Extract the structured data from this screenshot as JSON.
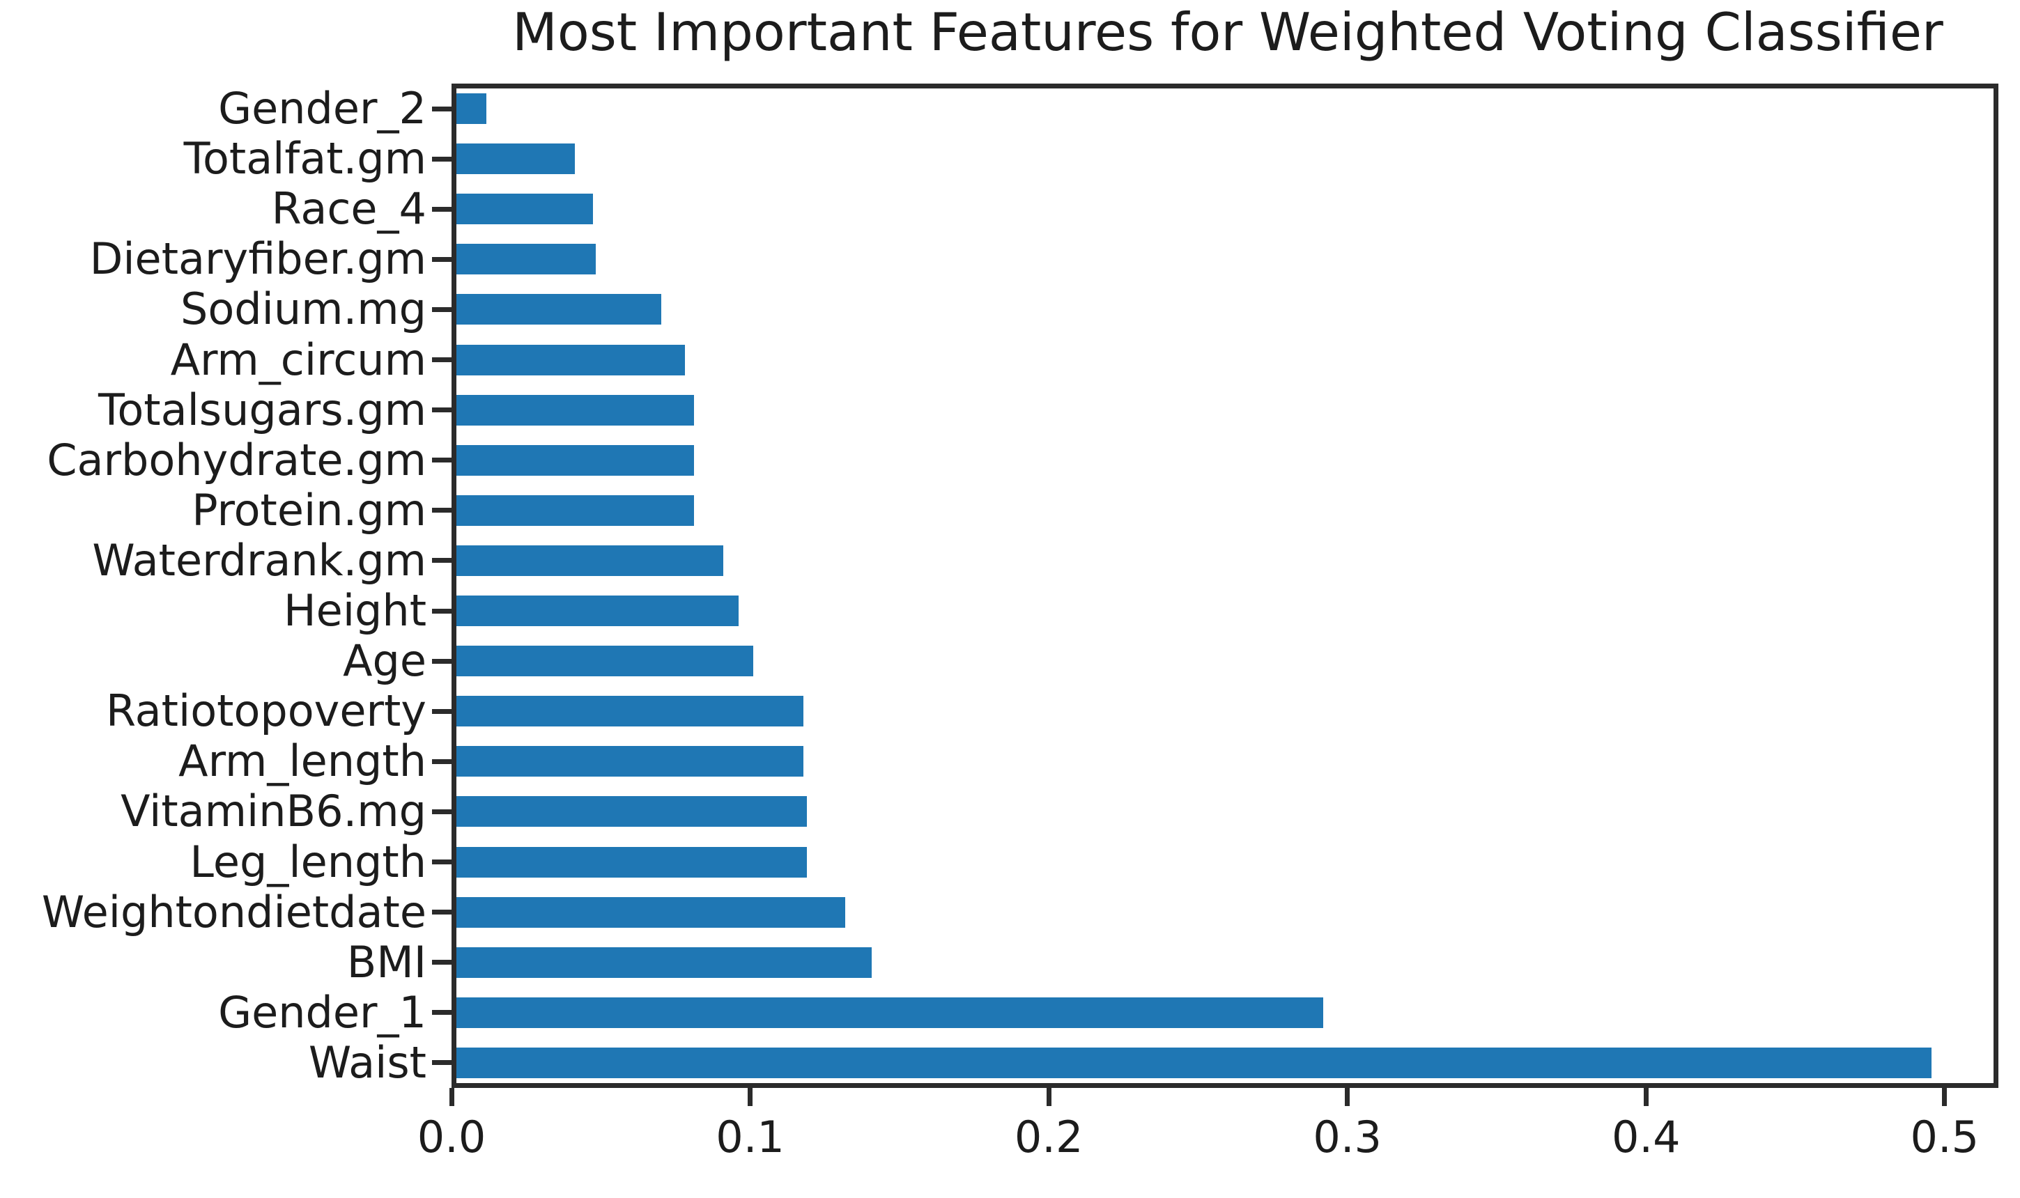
{
  "title": "Most Important Features for Weighted Voting Classifier",
  "colors": {
    "bar": "#1f77b4",
    "spine": "#2b2b2b",
    "text": "#1c1c1c",
    "background": "#ffffff"
  },
  "chart_data": {
    "type": "bar",
    "orientation": "horizontal",
    "order": "top-to-bottom",
    "title": "Most Important Features for Weighted Voting Classifier",
    "xlabel": "",
    "ylabel": "",
    "grid": false,
    "legend": false,
    "categories": [
      "Gender_2",
      "Totalfat.gm",
      "Race_4",
      "Dietaryfiber.gm",
      "Sodium.mg",
      "Arm_circum",
      "Totalsugars.gm",
      "Carbohydrate.gm",
      "Protein.gm",
      "Waterdrank.gm",
      "Height",
      "Age",
      "Ratiotopoverty",
      "Arm_length",
      "VitaminB6.mg",
      "Leg_length",
      "Weightondietdate",
      "BMI",
      "Gender_1",
      "Waist"
    ],
    "values": [
      0.01,
      0.04,
      0.046,
      0.047,
      0.069,
      0.077,
      0.08,
      0.08,
      0.08,
      0.09,
      0.095,
      0.1,
      0.117,
      0.117,
      0.118,
      0.118,
      0.131,
      0.14,
      0.292,
      0.497
    ],
    "xlim": [
      0,
      0.518
    ],
    "xticks": [
      0.0,
      0.1,
      0.2,
      0.3,
      0.4,
      0.5
    ],
    "xtick_labels": [
      "0.0",
      "0.1",
      "0.2",
      "0.3",
      "0.4",
      "0.5"
    ]
  }
}
